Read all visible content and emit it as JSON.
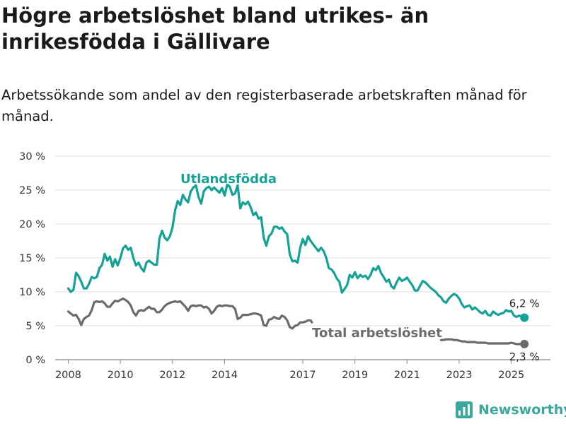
{
  "header": {
    "title": "Högre arbetslöshet bland utrikes- än inrikesfödda i Gällivare",
    "subtitle": "Arbetssökande som andel av den registerbaserade arbetskraften månad för månad."
  },
  "brand": {
    "name": "Newsworthy",
    "icon": "bar-chart-logo-icon",
    "color": "#3aa89c"
  },
  "chart_data": {
    "type": "line",
    "xlim": [
      2007.5,
      2026.5
    ],
    "ylim": [
      0,
      30
    ],
    "y_ticks": [
      0,
      5,
      10,
      15,
      20,
      25,
      30
    ],
    "y_tick_labels": [
      "0 %",
      "5 %",
      "10 %",
      "15 %",
      "20 %",
      "25 %",
      "30 %"
    ],
    "x_ticks": [
      2008,
      2010,
      2012,
      2014,
      2017,
      2019,
      2021,
      2023,
      2025
    ],
    "x_tick_labels": [
      "2008",
      "2010",
      "2012",
      "2014",
      "2017",
      "2019",
      "2021",
      "2023",
      "2025"
    ],
    "grid": true,
    "series": [
      {
        "name": "Utlandsfödda",
        "color": "#12a296",
        "end_label": "6,2 %",
        "points": [
          [
            2008.0,
            10.5
          ],
          [
            2008.1,
            10.0
          ],
          [
            2008.2,
            10.3
          ],
          [
            2008.3,
            12.8
          ],
          [
            2008.4,
            12.3
          ],
          [
            2008.5,
            11.5
          ],
          [
            2008.6,
            10.5
          ],
          [
            2008.7,
            10.5
          ],
          [
            2008.8,
            11.2
          ],
          [
            2008.9,
            12.2
          ],
          [
            2009.0,
            12.0
          ],
          [
            2009.1,
            12.2
          ],
          [
            2009.2,
            13.5
          ],
          [
            2009.3,
            14.0
          ],
          [
            2009.4,
            15.6
          ],
          [
            2009.5,
            14.6
          ],
          [
            2009.6,
            15.2
          ],
          [
            2009.7,
            13.7
          ],
          [
            2009.8,
            14.8
          ],
          [
            2009.9,
            13.9
          ],
          [
            2010.0,
            15.0
          ],
          [
            2010.1,
            16.4
          ],
          [
            2010.2,
            16.8
          ],
          [
            2010.3,
            16.2
          ],
          [
            2010.4,
            16.5
          ],
          [
            2010.5,
            15.0
          ],
          [
            2010.6,
            13.9
          ],
          [
            2010.7,
            14.3
          ],
          [
            2010.8,
            13.5
          ],
          [
            2010.9,
            13.0
          ],
          [
            2011.0,
            14.3
          ],
          [
            2011.1,
            14.6
          ],
          [
            2011.2,
            14.3
          ],
          [
            2011.3,
            14.0
          ],
          [
            2011.4,
            14.0
          ],
          [
            2011.5,
            17.9
          ],
          [
            2011.6,
            19.0
          ],
          [
            2011.7,
            18.0
          ],
          [
            2011.8,
            17.6
          ],
          [
            2011.9,
            18.2
          ],
          [
            2012.0,
            19.5
          ],
          [
            2012.1,
            22.0
          ],
          [
            2012.2,
            23.4
          ],
          [
            2012.3,
            22.8
          ],
          [
            2012.4,
            24.3
          ],
          [
            2012.5,
            23.6
          ],
          [
            2012.6,
            23.2
          ],
          [
            2012.7,
            24.8
          ],
          [
            2012.8,
            25.4
          ],
          [
            2012.9,
            25.7
          ],
          [
            2013.0,
            24.0
          ],
          [
            2013.1,
            23.0
          ],
          [
            2013.2,
            24.8
          ],
          [
            2013.3,
            25.3
          ],
          [
            2013.4,
            25.5
          ],
          [
            2013.5,
            25.0
          ],
          [
            2013.6,
            25.4
          ],
          [
            2013.7,
            25.0
          ],
          [
            2013.8,
            24.6
          ],
          [
            2013.9,
            25.3
          ],
          [
            2014.0,
            24.2
          ],
          [
            2014.1,
            25.8
          ],
          [
            2014.2,
            25.5
          ],
          [
            2014.3,
            24.3
          ],
          [
            2014.4,
            24.5
          ],
          [
            2014.5,
            25.7
          ],
          [
            2014.6,
            22.3
          ],
          [
            2014.7,
            23.2
          ],
          [
            2014.8,
            22.9
          ],
          [
            2014.9,
            23.3
          ],
          [
            2015.0,
            22.5
          ],
          [
            2015.1,
            21.3
          ],
          [
            2015.2,
            21.7
          ],
          [
            2015.3,
            20.8
          ],
          [
            2015.4,
            21.0
          ],
          [
            2015.5,
            18.0
          ],
          [
            2015.6,
            16.8
          ],
          [
            2015.7,
            18.2
          ],
          [
            2015.8,
            18.6
          ],
          [
            2015.9,
            19.6
          ],
          [
            2016.0,
            19.6
          ],
          [
            2016.1,
            19.3
          ],
          [
            2016.2,
            19.5
          ],
          [
            2016.3,
            18.9
          ],
          [
            2016.4,
            18.5
          ],
          [
            2016.5,
            15.5
          ],
          [
            2016.6,
            14.5
          ],
          [
            2016.7,
            14.6
          ],
          [
            2016.8,
            14.3
          ],
          [
            2016.9,
            16.5
          ],
          [
            2017.0,
            17.8
          ],
          [
            2017.1,
            16.9
          ],
          [
            2017.2,
            18.2
          ],
          [
            2017.3,
            17.5
          ],
          [
            2017.4,
            17.0
          ],
          [
            2017.5,
            16.5
          ],
          [
            2017.6,
            16.0
          ],
          [
            2017.7,
            16.5
          ],
          [
            2017.8,
            16.0
          ],
          [
            2017.9,
            15.0
          ],
          [
            2018.0,
            13.5
          ],
          [
            2018.1,
            13.3
          ],
          [
            2018.2,
            12.8
          ],
          [
            2018.3,
            12.0
          ],
          [
            2018.4,
            11.5
          ],
          [
            2018.5,
            9.9
          ],
          [
            2018.6,
            10.4
          ],
          [
            2018.7,
            11.0
          ],
          [
            2018.8,
            12.5
          ],
          [
            2018.9,
            12.1
          ],
          [
            2019.0,
            12.9
          ],
          [
            2019.1,
            12.0
          ],
          [
            2019.2,
            12.5
          ],
          [
            2019.3,
            12.2
          ],
          [
            2019.4,
            12.4
          ],
          [
            2019.5,
            11.9
          ],
          [
            2019.6,
            12.5
          ],
          [
            2019.7,
            13.5
          ],
          [
            2019.8,
            13.2
          ],
          [
            2019.9,
            13.8
          ],
          [
            2020.0,
            12.8
          ],
          [
            2020.1,
            12.2
          ],
          [
            2020.2,
            11.5
          ],
          [
            2020.3,
            11.8
          ],
          [
            2020.4,
            10.8
          ],
          [
            2020.5,
            10.5
          ],
          [
            2020.6,
            11.4
          ],
          [
            2020.7,
            12.1
          ],
          [
            2020.8,
            11.6
          ],
          [
            2020.9,
            11.8
          ],
          [
            2021.0,
            12.1
          ],
          [
            2021.1,
            11.5
          ],
          [
            2021.2,
            11.0
          ],
          [
            2021.3,
            10.2
          ],
          [
            2021.4,
            10.2
          ],
          [
            2021.5,
            10.9
          ],
          [
            2021.6,
            11.6
          ],
          [
            2021.7,
            11.4
          ],
          [
            2021.8,
            11.0
          ],
          [
            2021.9,
            10.6
          ],
          [
            2022.0,
            10.3
          ],
          [
            2022.1,
            10.0
          ],
          [
            2022.2,
            9.5
          ],
          [
            2022.3,
            9.2
          ],
          [
            2022.4,
            8.6
          ],
          [
            2022.5,
            8.4
          ],
          [
            2022.6,
            9.0
          ],
          [
            2022.7,
            9.4
          ],
          [
            2022.8,
            9.7
          ],
          [
            2022.9,
            9.5
          ],
          [
            2023.0,
            9.0
          ],
          [
            2023.1,
            8.2
          ],
          [
            2023.2,
            7.7
          ],
          [
            2023.3,
            7.9
          ],
          [
            2023.4,
            8.0
          ],
          [
            2023.5,
            7.4
          ],
          [
            2023.6,
            7.7
          ],
          [
            2023.7,
            7.4
          ],
          [
            2023.8,
            7.0
          ],
          [
            2023.9,
            6.8
          ],
          [
            2024.0,
            7.2
          ],
          [
            2024.1,
            6.6
          ],
          [
            2024.2,
            6.5
          ],
          [
            2024.3,
            7.1
          ],
          [
            2024.4,
            6.8
          ],
          [
            2024.5,
            6.6
          ],
          [
            2024.6,
            6.8
          ],
          [
            2024.7,
            6.9
          ],
          [
            2024.8,
            7.3
          ],
          [
            2024.9,
            7.1
          ],
          [
            2025.0,
            7.2
          ],
          [
            2025.1,
            6.5
          ],
          [
            2025.2,
            6.3
          ],
          [
            2025.3,
            6.5
          ],
          [
            2025.5,
            6.2
          ]
        ]
      },
      {
        "name": "Total arbetslöshet",
        "color": "#6b6a6f",
        "end_label": "2,3 %",
        "points": [
          [
            2008.0,
            7.1
          ],
          [
            2008.1,
            6.8
          ],
          [
            2008.2,
            6.5
          ],
          [
            2008.3,
            6.6
          ],
          [
            2008.4,
            6.0
          ],
          [
            2008.5,
            5.1
          ],
          [
            2008.6,
            6.0
          ],
          [
            2008.7,
            6.3
          ],
          [
            2008.8,
            6.5
          ],
          [
            2008.9,
            7.3
          ],
          [
            2009.0,
            8.5
          ],
          [
            2009.1,
            8.6
          ],
          [
            2009.2,
            8.5
          ],
          [
            2009.3,
            8.6
          ],
          [
            2009.4,
            8.3
          ],
          [
            2009.5,
            7.8
          ],
          [
            2009.6,
            7.8
          ],
          [
            2009.7,
            8.3
          ],
          [
            2009.8,
            8.7
          ],
          [
            2009.9,
            8.6
          ],
          [
            2010.0,
            8.8
          ],
          [
            2010.1,
            9.0
          ],
          [
            2010.2,
            8.8
          ],
          [
            2010.3,
            8.5
          ],
          [
            2010.4,
            8.0
          ],
          [
            2010.5,
            7.0
          ],
          [
            2010.6,
            6.5
          ],
          [
            2010.7,
            7.2
          ],
          [
            2010.8,
            7.3
          ],
          [
            2010.9,
            7.2
          ],
          [
            2011.0,
            7.5
          ],
          [
            2011.1,
            7.8
          ],
          [
            2011.2,
            7.5
          ],
          [
            2011.3,
            7.5
          ],
          [
            2011.4,
            7.0
          ],
          [
            2011.5,
            7.0
          ],
          [
            2011.6,
            7.4
          ],
          [
            2011.7,
            7.9
          ],
          [
            2011.8,
            8.2
          ],
          [
            2011.9,
            8.4
          ],
          [
            2012.0,
            8.5
          ],
          [
            2012.1,
            8.6
          ],
          [
            2012.2,
            8.5
          ],
          [
            2012.3,
            8.6
          ],
          [
            2012.4,
            8.2
          ],
          [
            2012.5,
            7.8
          ],
          [
            2012.6,
            7.2
          ],
          [
            2012.7,
            7.9
          ],
          [
            2012.8,
            8.0
          ],
          [
            2012.9,
            7.9
          ],
          [
            2013.0,
            8.0
          ],
          [
            2013.1,
            8.0
          ],
          [
            2013.2,
            7.7
          ],
          [
            2013.3,
            7.8
          ],
          [
            2013.4,
            7.5
          ],
          [
            2013.5,
            6.8
          ],
          [
            2013.6,
            7.2
          ],
          [
            2013.7,
            7.8
          ],
          [
            2013.8,
            8.0
          ],
          [
            2013.9,
            7.9
          ],
          [
            2014.0,
            8.0
          ],
          [
            2014.1,
            8.0
          ],
          [
            2014.2,
            7.9
          ],
          [
            2014.3,
            7.9
          ],
          [
            2014.4,
            7.5
          ],
          [
            2014.5,
            6.0
          ],
          [
            2014.6,
            6.2
          ],
          [
            2014.7,
            6.6
          ],
          [
            2014.8,
            6.6
          ],
          [
            2014.9,
            6.6
          ],
          [
            2015.0,
            6.7
          ],
          [
            2015.1,
            6.8
          ],
          [
            2015.2,
            6.8
          ],
          [
            2015.3,
            6.7
          ],
          [
            2015.4,
            6.5
          ],
          [
            2015.5,
            5.1
          ],
          [
            2015.6,
            5.0
          ],
          [
            2015.7,
            5.9
          ],
          [
            2015.8,
            6.0
          ],
          [
            2015.9,
            6.3
          ],
          [
            2016.0,
            6.1
          ],
          [
            2016.1,
            6.0
          ],
          [
            2016.2,
            6.5
          ],
          [
            2016.3,
            6.3
          ],
          [
            2016.4,
            5.8
          ],
          [
            2016.5,
            4.8
          ],
          [
            2016.6,
            4.6
          ],
          [
            2016.7,
            5.0
          ],
          [
            2016.8,
            5.1
          ],
          [
            2016.9,
            5.5
          ],
          [
            2017.0,
            5.5
          ],
          [
            2017.1,
            5.6
          ],
          [
            2017.2,
            5.8
          ],
          [
            2017.3,
            5.8
          ],
          [
            2017.35,
            5.5
          ],
          [
            2022.3,
            2.9
          ],
          [
            2022.4,
            2.9
          ],
          [
            2022.5,
            3.0
          ],
          [
            2022.6,
            3.0
          ],
          [
            2022.7,
            3.0
          ],
          [
            2022.8,
            2.9
          ],
          [
            2022.9,
            2.9
          ],
          [
            2023.0,
            2.8
          ],
          [
            2023.1,
            2.7
          ],
          [
            2023.2,
            2.7
          ],
          [
            2023.3,
            2.6
          ],
          [
            2023.4,
            2.6
          ],
          [
            2023.5,
            2.6
          ],
          [
            2023.6,
            2.6
          ],
          [
            2023.7,
            2.5
          ],
          [
            2023.8,
            2.5
          ],
          [
            2023.9,
            2.5
          ],
          [
            2024.0,
            2.5
          ],
          [
            2024.1,
            2.4
          ],
          [
            2024.2,
            2.4
          ],
          [
            2024.3,
            2.4
          ],
          [
            2024.4,
            2.4
          ],
          [
            2024.5,
            2.4
          ],
          [
            2024.6,
            2.4
          ],
          [
            2024.7,
            2.4
          ],
          [
            2024.8,
            2.4
          ],
          [
            2024.9,
            2.4
          ],
          [
            2025.0,
            2.5
          ],
          [
            2025.1,
            2.4
          ],
          [
            2025.2,
            2.3
          ],
          [
            2025.3,
            2.3
          ],
          [
            2025.5,
            2.3
          ]
        ]
      }
    ]
  }
}
